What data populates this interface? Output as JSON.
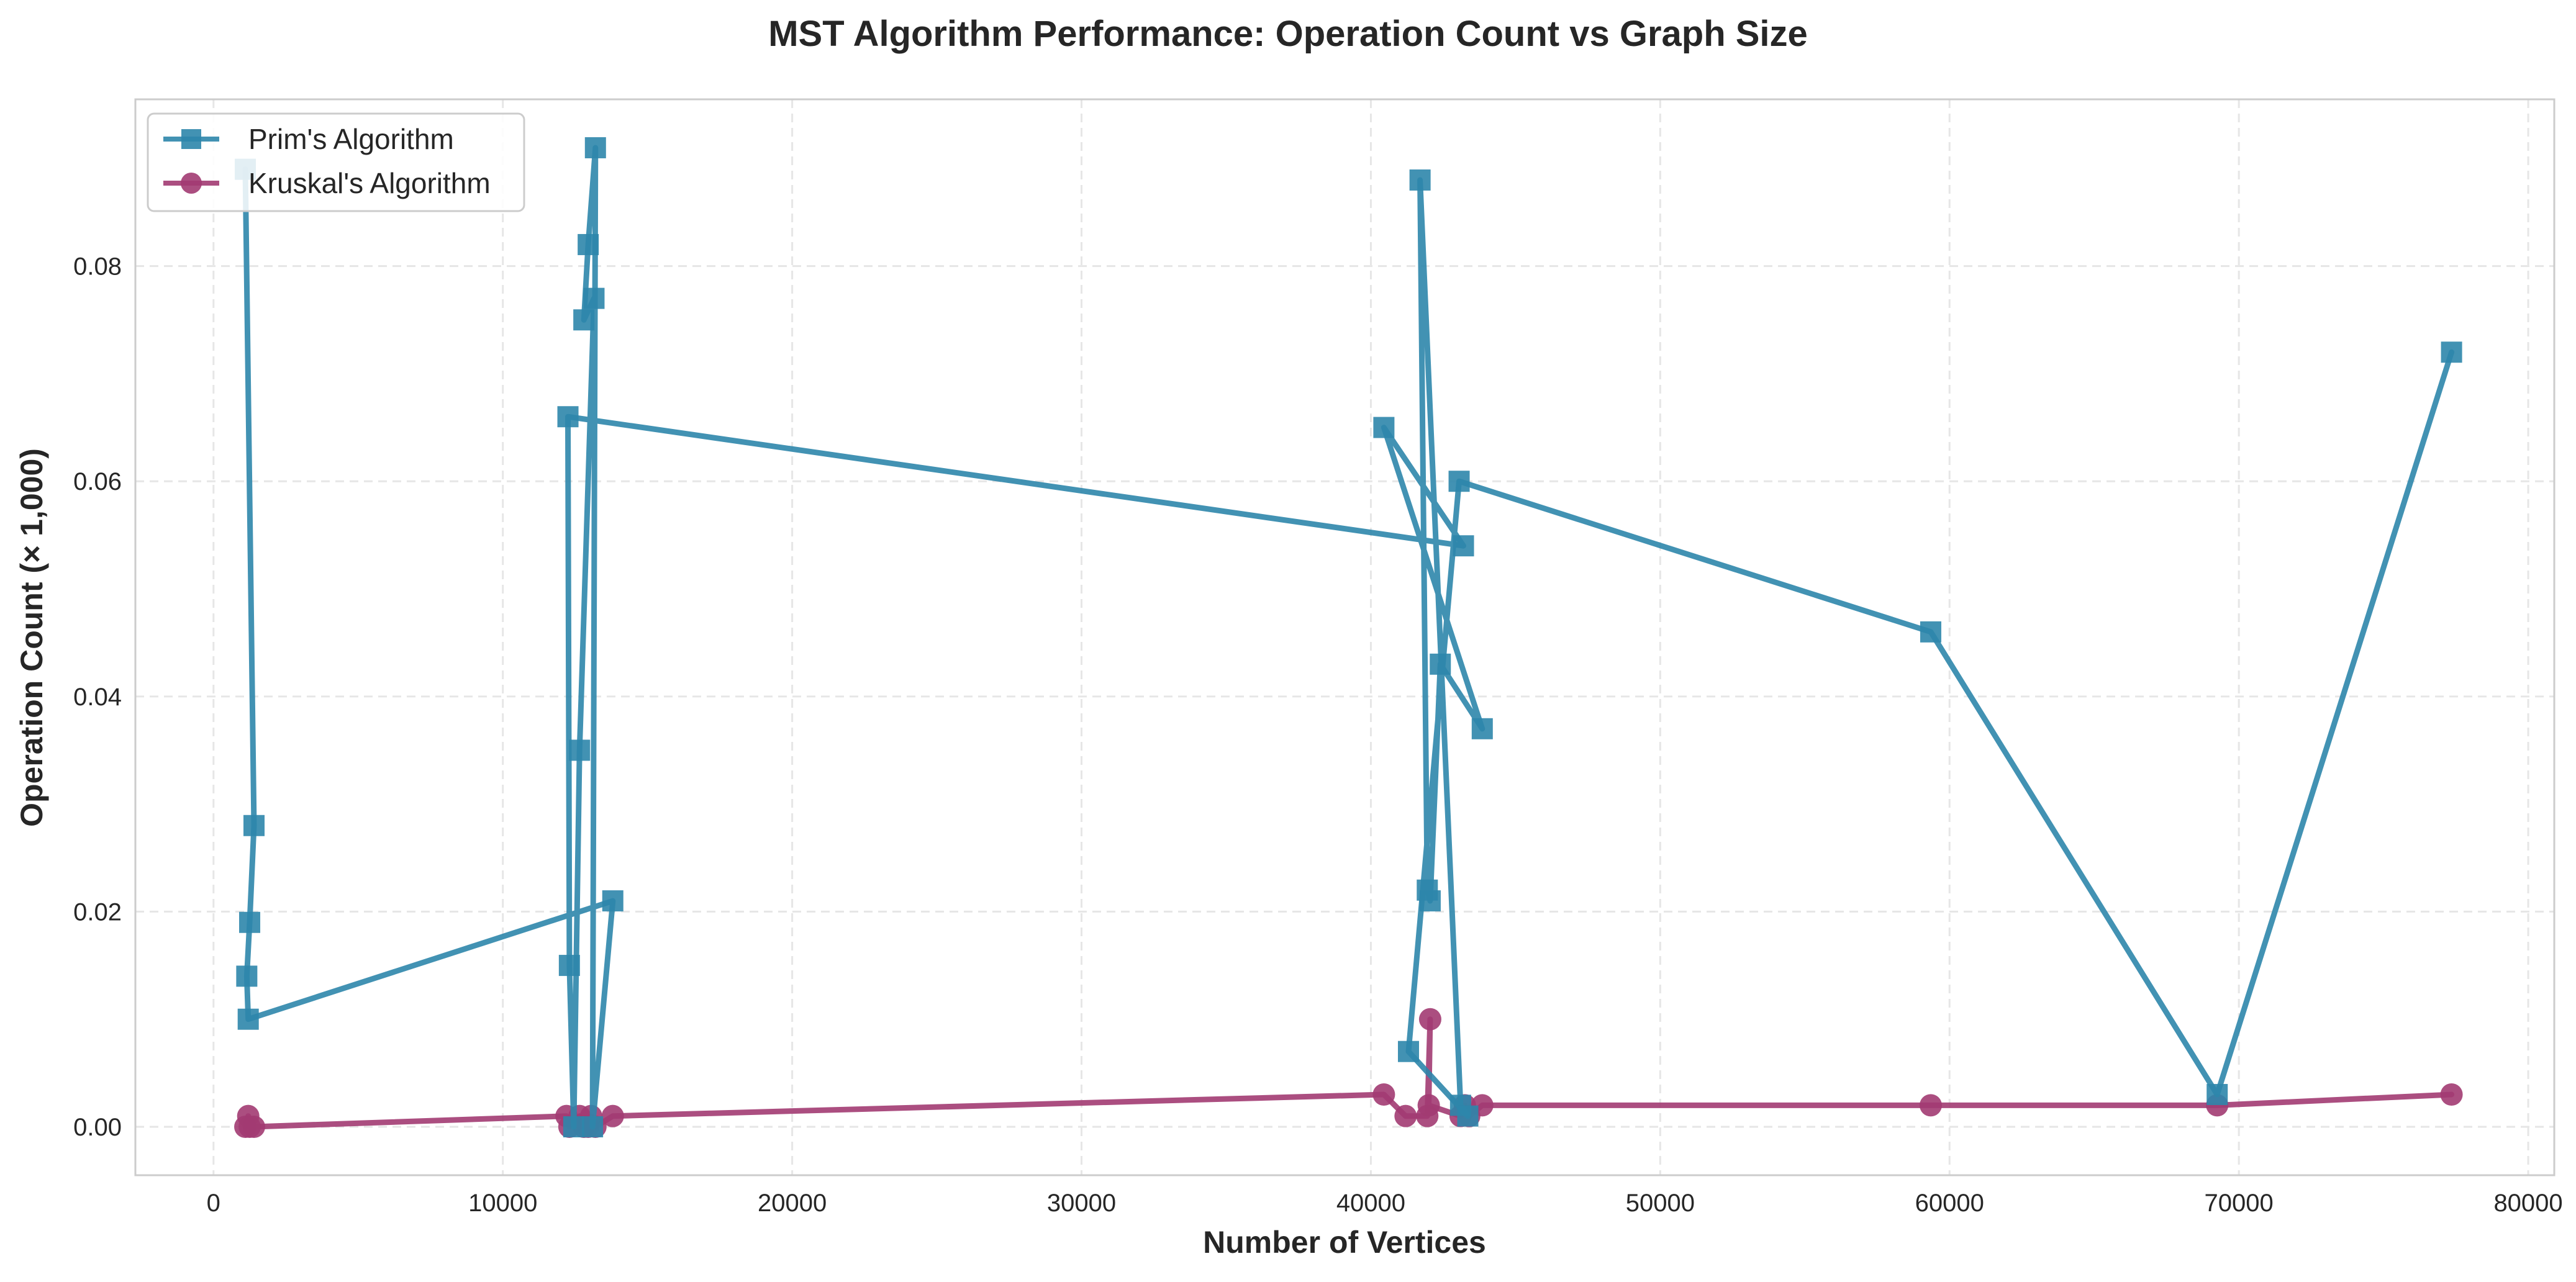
{
  "chart_data": {
    "type": "line",
    "title": "MST Algorithm Performance: Operation Count vs Graph Size",
    "xlabel": "Number of Vertices",
    "ylabel": "Operation Count (× 1,000)",
    "xlim": [
      -2700,
      80900
    ],
    "ylim": [
      -0.0045,
      0.0955
    ],
    "xticks": [
      0,
      10000,
      20000,
      30000,
      40000,
      50000,
      60000,
      70000,
      80000
    ],
    "xtick_labels": [
      "0",
      "10000",
      "20000",
      "30000",
      "40000",
      "50000",
      "60000",
      "70000",
      "80000"
    ],
    "yticks": [
      0.0,
      0.02,
      0.04,
      0.06,
      0.08
    ],
    "ytick_labels": [
      "0.00",
      "0.02",
      "0.04",
      "0.06",
      "0.08"
    ],
    "grid": true,
    "legend_position": "top-left",
    "series": [
      {
        "name": "Prim's Algorithm",
        "color": "#2e86ab",
        "marker": "square",
        "points": [
          [
            1100,
            0.089
          ],
          [
            1400,
            0.028
          ],
          [
            1250,
            0.019
          ],
          [
            1150,
            0.014
          ],
          [
            1200,
            0.01
          ],
          [
            13800,
            0.021
          ],
          [
            13100,
            0.0
          ],
          [
            13200,
            0.091
          ],
          [
            12950,
            0.082
          ],
          [
            12800,
            0.075
          ],
          [
            13150,
            0.077
          ],
          [
            12650,
            0.035
          ],
          [
            12450,
            0.0
          ],
          [
            12300,
            0.015
          ],
          [
            12250,
            0.066
          ],
          [
            43200,
            0.054
          ],
          [
            40450,
            0.065
          ],
          [
            43850,
            0.037
          ],
          [
            42400,
            0.043
          ],
          [
            42050,
            0.021
          ],
          [
            41950,
            0.022
          ],
          [
            41700,
            0.088
          ],
          [
            43100,
            0.002
          ],
          [
            43350,
            0.001
          ],
          [
            41300,
            0.007
          ],
          [
            43050,
            0.06
          ],
          [
            59350,
            0.046
          ],
          [
            69250,
            0.003
          ],
          [
            77350,
            0.072
          ]
        ]
      },
      {
        "name": "Kruskal's Algorithm",
        "color": "#a23b72",
        "marker": "circle",
        "points": [
          [
            1100,
            0.0
          ],
          [
            1200,
            0.001
          ],
          [
            1250,
            0.0
          ],
          [
            1400,
            0.0
          ],
          [
            12200,
            0.001
          ],
          [
            12300,
            0.0
          ],
          [
            12650,
            0.001
          ],
          [
            12800,
            0.0
          ],
          [
            12950,
            0.0
          ],
          [
            13050,
            0.001
          ],
          [
            13200,
            0.0
          ],
          [
            13800,
            0.001
          ],
          [
            40450,
            0.003
          ],
          [
            41200,
            0.001
          ],
          [
            41950,
            0.001
          ],
          [
            42050,
            0.01
          ],
          [
            42000,
            0.002
          ],
          [
            43100,
            0.001
          ],
          [
            43250,
            0.002
          ],
          [
            43400,
            0.001
          ],
          [
            43850,
            0.002
          ],
          [
            59350,
            0.002
          ],
          [
            69250,
            0.002
          ],
          [
            77350,
            0.003
          ]
        ]
      }
    ]
  }
}
